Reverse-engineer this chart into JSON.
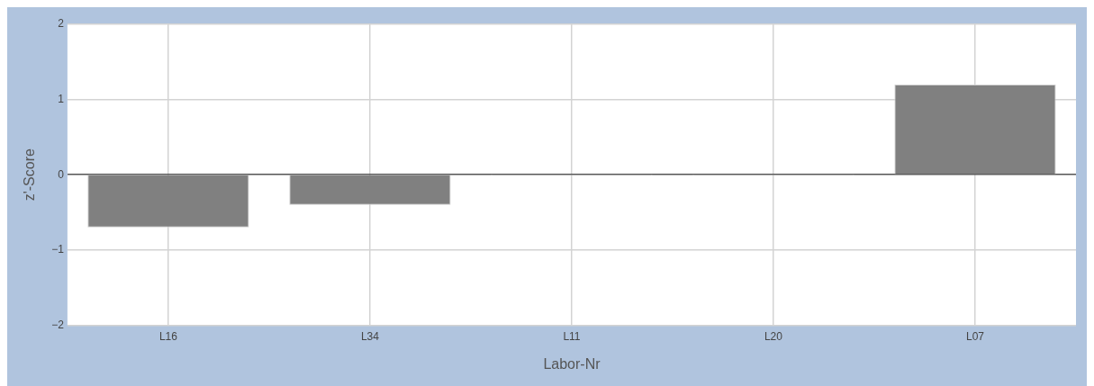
{
  "chart_data": {
    "type": "bar",
    "xlabel": "Labor-Nr",
    "ylabel": "z'-Score",
    "categories": [
      "L16",
      "L34",
      "L11",
      "L20",
      "L07"
    ],
    "values": [
      -0.7,
      -0.4,
      0,
      0,
      1.2
    ],
    "color": "#808080",
    "ylim": [
      -2,
      2
    ],
    "yticks": [
      -2,
      -1,
      0,
      1,
      2
    ],
    "grid": true
  }
}
